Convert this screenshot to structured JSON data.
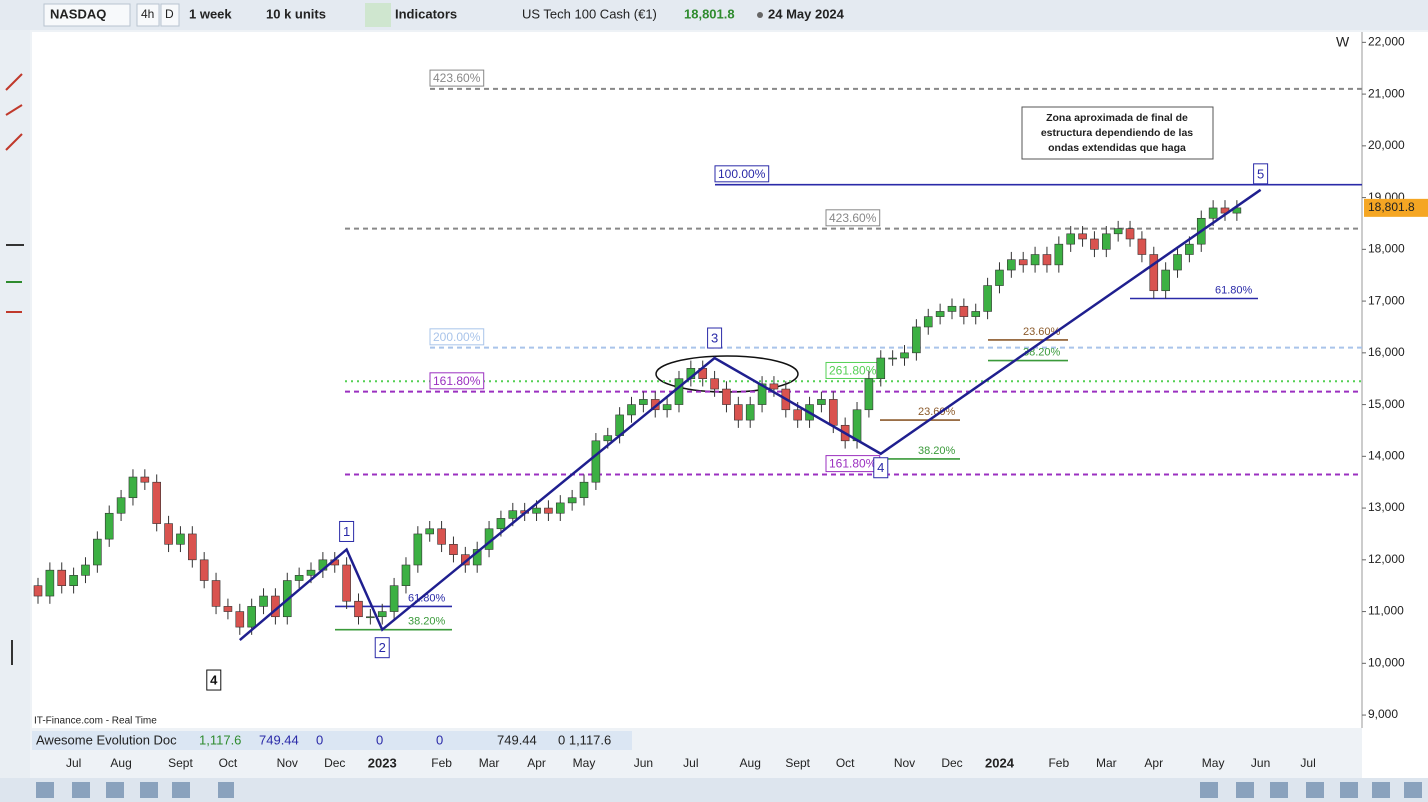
{
  "toolbar": {
    "symbol": "NASDAQ",
    "timeframes": [
      "4h",
      "D"
    ],
    "period": "1 week",
    "units": "10 k units",
    "indicators": "Indicators",
    "instrument": "US Tech 100 Cash (€1)",
    "date": "24 May 2024"
  },
  "chart_data": {
    "type": "candlestick",
    "corner_label": "W",
    "up_color": "#3cb043",
    "down_color": "#d9534f",
    "ylim": [
      8750,
      22200
    ],
    "yticks": [
      {
        "value": 9000,
        "label": "9,000"
      },
      {
        "value": 10000,
        "label": "10,000"
      },
      {
        "value": 11000,
        "label": "11,000"
      },
      {
        "value": 12000,
        "label": "12,000"
      },
      {
        "value": 13000,
        "label": "13,000"
      },
      {
        "value": 14000,
        "label": "14,000"
      },
      {
        "value": 15000,
        "label": "15,000"
      },
      {
        "value": 16000,
        "label": "16,000"
      },
      {
        "value": 17000,
        "label": "17,000"
      },
      {
        "value": 18000,
        "label": "18,000"
      },
      {
        "value": 19000,
        "label": "19,000"
      },
      {
        "value": 20000,
        "label": "20,000"
      },
      {
        "value": 21000,
        "label": "21,000"
      },
      {
        "value": 22000,
        "label": "22,000"
      }
    ],
    "last_price": {
      "value": 18801.8,
      "label": "18,801.8"
    },
    "categories": [
      null,
      null,
      null,
      "Jul",
      null,
      null,
      null,
      "Aug",
      null,
      null,
      null,
      null,
      "Sept",
      null,
      null,
      null,
      "Oct",
      null,
      null,
      null,
      null,
      "Nov",
      null,
      null,
      null,
      "Dec",
      null,
      null,
      null,
      "2023",
      null,
      null,
      null,
      null,
      "Feb",
      null,
      null,
      null,
      "Mar",
      null,
      null,
      null,
      "Apr",
      null,
      null,
      null,
      "May",
      null,
      null,
      null,
      null,
      "Jun",
      null,
      null,
      null,
      "Jul",
      null,
      null,
      null,
      null,
      "Aug",
      null,
      null,
      null,
      "Sept",
      null,
      null,
      null,
      "Oct",
      null,
      null,
      null,
      null,
      "Nov",
      null,
      null,
      null,
      "Dec",
      null,
      null,
      null,
      "2024",
      null,
      null,
      null,
      null,
      "Feb",
      null,
      null,
      null,
      "Mar",
      null,
      null,
      null,
      "Apr",
      null,
      null,
      null,
      null,
      "May",
      null,
      null,
      null,
      "Jun",
      null,
      null,
      null,
      "Jul"
    ],
    "candles": [
      [
        11500,
        11650,
        11150,
        11300
      ],
      [
        11300,
        11950,
        11150,
        11800
      ],
      [
        11800,
        11950,
        11350,
        11500
      ],
      [
        11500,
        11850,
        11350,
        11700
      ],
      [
        11700,
        12050,
        11550,
        11900
      ],
      [
        11900,
        12550,
        11750,
        12400
      ],
      [
        12400,
        13050,
        12250,
        12900
      ],
      [
        12900,
        13350,
        12750,
        13200
      ],
      [
        13200,
        13750,
        13050,
        13600
      ],
      [
        13600,
        13750,
        13350,
        13500
      ],
      [
        13500,
        13650,
        12550,
        12700
      ],
      [
        12700,
        12850,
        12150,
        12300
      ],
      [
        12300,
        12650,
        12150,
        12500
      ],
      [
        12500,
        12650,
        11850,
        12000
      ],
      [
        12000,
        12150,
        11450,
        11600
      ],
      [
        11600,
        11750,
        10950,
        11100
      ],
      [
        11100,
        11250,
        10850,
        11000
      ],
      [
        11000,
        11150,
        10550,
        10700
      ],
      [
        10700,
        11250,
        10550,
        11100
      ],
      [
        11100,
        11450,
        10950,
        11300
      ],
      [
        11300,
        11450,
        10750,
        10900
      ],
      [
        10900,
        11750,
        10750,
        11600
      ],
      [
        11600,
        11850,
        11450,
        11700
      ],
      [
        11700,
        11950,
        11550,
        11800
      ],
      [
        11800,
        12150,
        11650,
        12000
      ],
      [
        12000,
        12150,
        11750,
        11900
      ],
      [
        11900,
        12050,
        11050,
        11200
      ],
      [
        11200,
        11350,
        10750,
        10900
      ],
      [
        10900,
        11050,
        10750,
        10900
      ],
      [
        10900,
        11150,
        10750,
        11000
      ],
      [
        11000,
        11650,
        10850,
        11500
      ],
      [
        11500,
        12050,
        11350,
        11900
      ],
      [
        11900,
        12650,
        11750,
        12500
      ],
      [
        12500,
        12750,
        12350,
        12600
      ],
      [
        12600,
        12750,
        12150,
        12300
      ],
      [
        12300,
        12450,
        11950,
        12100
      ],
      [
        12100,
        12250,
        11750,
        11900
      ],
      [
        11900,
        12350,
        11750,
        12200
      ],
      [
        12200,
        12750,
        12050,
        12600
      ],
      [
        12600,
        12950,
        12450,
        12800
      ],
      [
        12800,
        13100,
        12650,
        12950
      ],
      [
        12950,
        13100,
        12750,
        12900
      ],
      [
        12900,
        13150,
        12750,
        13000
      ],
      [
        13000,
        13150,
        12750,
        12900
      ],
      [
        12900,
        13250,
        12750,
        13100
      ],
      [
        13100,
        13350,
        12950,
        13200
      ],
      [
        13200,
        13650,
        13050,
        13500
      ],
      [
        13500,
        14450,
        13350,
        14300
      ],
      [
        14300,
        14550,
        14150,
        14400
      ],
      [
        14400,
        14950,
        14250,
        14800
      ],
      [
        14800,
        15150,
        14650,
        15000
      ],
      [
        15000,
        15250,
        14850,
        15100
      ],
      [
        15100,
        15250,
        14750,
        14900
      ],
      [
        14900,
        15150,
        14750,
        15000
      ],
      [
        15000,
        15650,
        14850,
        15500
      ],
      [
        15500,
        15850,
        15350,
        15700
      ],
      [
        15700,
        15850,
        15350,
        15500
      ],
      [
        15500,
        15650,
        15150,
        15300
      ],
      [
        15300,
        15450,
        14850,
        15000
      ],
      [
        15000,
        15150,
        14550,
        14700
      ],
      [
        14700,
        15150,
        14550,
        15000
      ],
      [
        15000,
        15550,
        14850,
        15400
      ],
      [
        15400,
        15550,
        15150,
        15300
      ],
      [
        15300,
        15450,
        14750,
        14900
      ],
      [
        14900,
        15050,
        14550,
        14700
      ],
      [
        14700,
        15150,
        14550,
        15000
      ],
      [
        15000,
        15250,
        14850,
        15100
      ],
      [
        15100,
        15250,
        14450,
        14600
      ],
      [
        14600,
        14750,
        14150,
        14300
      ],
      [
        14300,
        15050,
        14150,
        14900
      ],
      [
        14900,
        15650,
        14750,
        15500
      ],
      [
        15500,
        16050,
        15350,
        15900
      ],
      [
        15900,
        16050,
        15750,
        15900
      ],
      [
        15900,
        16150,
        15750,
        16000
      ],
      [
        16000,
        16650,
        15850,
        16500
      ],
      [
        16500,
        16850,
        16350,
        16700
      ],
      [
        16700,
        16950,
        16550,
        16800
      ],
      [
        16800,
        17050,
        16650,
        16900
      ],
      [
        16900,
        17050,
        16550,
        16700
      ],
      [
        16700,
        16950,
        16550,
        16800
      ],
      [
        16800,
        17450,
        16650,
        17300
      ],
      [
        17300,
        17750,
        17150,
        17600
      ],
      [
        17600,
        17950,
        17450,
        17800
      ],
      [
        17800,
        17950,
        17550,
        17700
      ],
      [
        17700,
        18050,
        17550,
        17900
      ],
      [
        17900,
        18050,
        17550,
        17700
      ],
      [
        17700,
        18250,
        17550,
        18100
      ],
      [
        18100,
        18450,
        17950,
        18300
      ],
      [
        18300,
        18450,
        18050,
        18200
      ],
      [
        18200,
        18350,
        17850,
        18000
      ],
      [
        18000,
        18450,
        17850,
        18300
      ],
      [
        18300,
        18550,
        18150,
        18400
      ],
      [
        18400,
        18550,
        18050,
        18200
      ],
      [
        18200,
        18350,
        17750,
        17900
      ],
      [
        17900,
        18050,
        17050,
        17200
      ],
      [
        17200,
        17750,
        17050,
        17600
      ],
      [
        17600,
        18050,
        17450,
        17900
      ],
      [
        17900,
        18250,
        17750,
        18100
      ],
      [
        18100,
        18750,
        17950,
        18600
      ],
      [
        18600,
        18950,
        18450,
        18800
      ],
      [
        18800,
        18950,
        18550,
        18700
      ],
      [
        18700,
        18950,
        18550,
        18801.8
      ],
      null,
      null,
      null,
      null,
      null,
      null
    ],
    "waves": [
      {
        "label": "4",
        "x": 17,
        "value": 10450
      },
      {
        "label": "1",
        "x": 26,
        "value": 12200
      },
      {
        "label": "2",
        "x": 29,
        "value": 10650
      },
      {
        "label": "3",
        "x": 57,
        "value": 15900
      },
      {
        "label": "4",
        "x": 71,
        "value": 14050
      },
      {
        "label": "5",
        "x": 103,
        "value": 19150
      }
    ],
    "levels": [
      {
        "label": "423.60%",
        "value": 21100,
        "color": "#888888",
        "style": "dashed"
      },
      {
        "label": "100.00%",
        "value": 19250,
        "color": "#2a2aa8",
        "style": "solid"
      },
      {
        "label": "423.60%",
        "value": 18400,
        "color": "#888888",
        "style": "dashed"
      },
      {
        "label": "200.00%",
        "value": 16100,
        "color": "#a9c4ea",
        "style": "dashed"
      },
      {
        "label": "261.80%",
        "value": 15450,
        "color": "#55d055",
        "style": "dotted"
      },
      {
        "label": "161.80%",
        "value": 15250,
        "color": "#9b30c0",
        "style": "dashed"
      },
      {
        "label": "161.80%",
        "value": 13650,
        "color": "#9b30c0",
        "style": "dashed"
      },
      {
        "label": "61.80%",
        "value": 17050,
        "color": "#2a2aa8",
        "style": "solid"
      },
      {
        "label": "23.60%",
        "value": 16250,
        "color": "#8b5a2b",
        "style": "solid"
      },
      {
        "label": "38.20%",
        "value": 15850,
        "color": "#3a9a3a",
        "style": "solid"
      },
      {
        "label": "23.60%",
        "value": 14700,
        "color": "#8b5a2b",
        "style": "solid"
      },
      {
        "label": "38.20%",
        "value": 13950,
        "color": "#3a9a3a",
        "style": "solid"
      },
      {
        "label": "61.80%",
        "value": 11100,
        "color": "#2a2aa8",
        "style": "solid"
      },
      {
        "label": "38.20%",
        "value": 10650,
        "color": "#3a9a3a",
        "style": "solid"
      }
    ],
    "note": [
      "Zona aproximada de final de",
      "estructura dependiendo de las",
      "ondas extendidas que haga"
    ]
  },
  "source": "IT-Finance.com - Real Time",
  "indicator": {
    "name": "Awesome Evolution Doc",
    "values": [
      "1,117.6",
      "749.44",
      "0",
      "0",
      "0",
      "749.44",
      "0 1,117.6"
    ]
  }
}
